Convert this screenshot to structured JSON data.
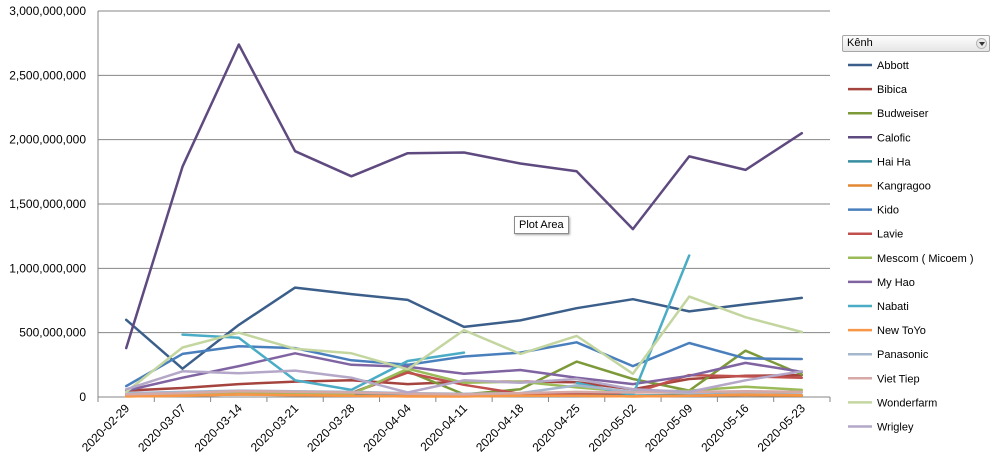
{
  "chart_data": {
    "type": "line",
    "categories": [
      "2020-02-29",
      "2020-03-07",
      "2020-03-14",
      "2020-03-21",
      "2020-03-28",
      "2020-04-04",
      "2020-04-11",
      "2020-04-18",
      "2020-04-25",
      "2020-05-02",
      "2020-05-09",
      "2020-05-16",
      "2020-05-23"
    ],
    "y_ticks": [
      "0",
      "500,000,000",
      "1,000,000,000",
      "1,500,000,000",
      "2,000,000,000",
      "2,500,000,000",
      "3,000,000,000"
    ],
    "ylim": [
      0,
      3000000000
    ],
    "grid": "horizontal",
    "legend": {
      "title": "Kênh",
      "position": "right"
    },
    "series": [
      {
        "name": "Abbott",
        "color": "#3b5f8a",
        "values": [
          600000000,
          220000000,
          560000000,
          850000000,
          800000000,
          755000000,
          545000000,
          595000000,
          690000000,
          760000000,
          665000000,
          720000000,
          770000000
        ]
      },
      {
        "name": "Bibica",
        "color": "#a5443e",
        "values": [
          50000000,
          70000000,
          100000000,
          120000000,
          130000000,
          100000000,
          120000000,
          120000000,
          115000000,
          60000000,
          140000000,
          165000000,
          170000000
        ]
      },
      {
        "name": "Budweiser",
        "color": "#7d9a3a",
        "values": [
          20000000,
          30000000,
          40000000,
          40000000,
          30000000,
          200000000,
          20000000,
          60000000,
          275000000,
          140000000,
          50000000,
          360000000,
          175000000
        ]
      },
      {
        "name": "Calofic",
        "color": "#5f4a80",
        "values": [
          380000000,
          1790000000,
          2740000000,
          1910000000,
          1715000000,
          1895000000,
          1900000000,
          1815000000,
          1755000000,
          1305000000,
          1870000000,
          1765000000,
          2050000000
        ]
      },
      {
        "name": "Hai Ha",
        "color": "#388ea0",
        "values": [
          10000000,
          15000000,
          20000000,
          25000000,
          20000000,
          15000000,
          10000000,
          15000000,
          20000000,
          10000000,
          15000000,
          20000000,
          15000000
        ]
      },
      {
        "name": "Kangragoo",
        "color": "#e38935",
        "values": [
          5000000,
          10000000,
          20000000,
          15000000,
          10000000,
          5000000,
          5000000,
          10000000,
          10000000,
          5000000,
          10000000,
          15000000,
          10000000
        ]
      },
      {
        "name": "Kido",
        "color": "#4a7fbd",
        "values": [
          85000000,
          335000000,
          395000000,
          380000000,
          285000000,
          250000000,
          315000000,
          345000000,
          425000000,
          240000000,
          420000000,
          300000000,
          295000000
        ]
      },
      {
        "name": "Lavie",
        "color": "#c0504d",
        "values": [
          10000000,
          20000000,
          25000000,
          30000000,
          30000000,
          190000000,
          95000000,
          25000000,
          30000000,
          30000000,
          170000000,
          160000000,
          150000000
        ]
      },
      {
        "name": "Mescom ( Micoem )",
        "color": "#9bbb59",
        "values": [
          15000000,
          20000000,
          30000000,
          25000000,
          20000000,
          220000000,
          110000000,
          120000000,
          75000000,
          40000000,
          50000000,
          80000000,
          55000000
        ]
      },
      {
        "name": "My Hao",
        "color": "#8064a2",
        "values": [
          50000000,
          150000000,
          240000000,
          340000000,
          250000000,
          235000000,
          180000000,
          210000000,
          150000000,
          100000000,
          165000000,
          265000000,
          195000000
        ]
      },
      {
        "name": "Nabati",
        "color": "#4bacc6",
        "values": [
          null,
          485000000,
          460000000,
          130000000,
          55000000,
          280000000,
          345000000,
          null,
          110000000,
          15000000,
          1100000000,
          null,
          null
        ]
      },
      {
        "name": "New ToYo",
        "color": "#f79646",
        "values": [
          5000000,
          10000000,
          20000000,
          15000000,
          10000000,
          5000000,
          5000000,
          10000000,
          10000000,
          5000000,
          10000000,
          20000000,
          15000000
        ]
      },
      {
        "name": "Panasonic",
        "color": "#a5b7cc",
        "values": [
          30000000,
          40000000,
          50000000,
          45000000,
          40000000,
          30000000,
          25000000,
          30000000,
          90000000,
          40000000,
          30000000,
          40000000,
          35000000
        ]
      },
      {
        "name": "Viet Tiep",
        "color": "#d6a8a6",
        "values": [
          20000000,
          30000000,
          45000000,
          40000000,
          35000000,
          25000000,
          20000000,
          30000000,
          40000000,
          35000000,
          40000000,
          45000000,
          40000000
        ]
      },
      {
        "name": "Wonderfarm",
        "color": "#c4d6a0",
        "values": [
          40000000,
          385000000,
          500000000,
          375000000,
          340000000,
          215000000,
          520000000,
          335000000,
          475000000,
          180000000,
          780000000,
          620000000,
          505000000
        ]
      },
      {
        "name": "Wrigley",
        "color": "#b4a7c8",
        "values": [
          60000000,
          200000000,
          185000000,
          205000000,
          150000000,
          35000000,
          130000000,
          110000000,
          140000000,
          60000000,
          40000000,
          130000000,
          200000000
        ]
      }
    ]
  },
  "tooltip": "Plot Area"
}
